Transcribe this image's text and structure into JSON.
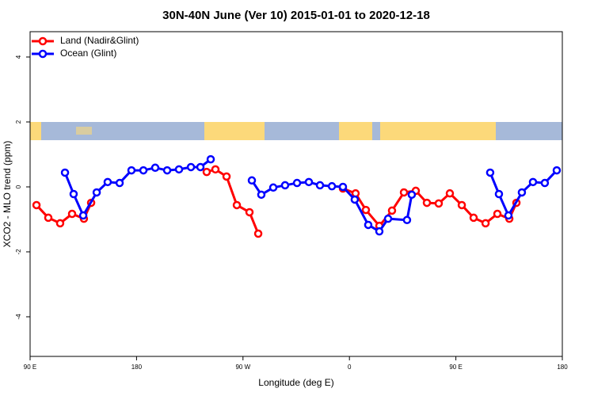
{
  "chart_data": {
    "type": "line",
    "title": "30N-40N June (Ver 10)   2015-01-01 to 2020-12-18",
    "x_label": "Longitude (deg E)",
    "y_label": "XCO2 - MLO trend (ppm)",
    "xlim": [
      90,
      540
    ],
    "ylim": [
      -5.22,
      4.78
    ],
    "xticks": [
      {
        "value": 90,
        "label": "90 E"
      },
      {
        "value": 180,
        "label": "180"
      },
      {
        "value": 270,
        "label": "90 W"
      },
      {
        "value": 360,
        "label": "0"
      },
      {
        "value": 450,
        "label": "90 E"
      },
      {
        "value": 540,
        "label": "180"
      }
    ],
    "yticks": [
      -4,
      -2,
      0,
      2,
      4
    ],
    "legend": "top-left",
    "series": [
      {
        "name": "Land (Nadir&Glint)",
        "color": "#ff0000",
        "x": [
          95.4,
          105.4,
          115.4,
          125.5,
          135.5,
          141.6,
          null,
          239.3,
          246.7,
          256.1,
          264.8,
          275.5,
          282.9,
          null,
          354.5,
          365.2,
          373.9,
          385.3,
          396.0,
          406.1,
          416.1,
          425.5,
          435.5,
          444.9,
          455.0,
          465.0,
          475.1,
          485.1,
          495.2,
          501.2
        ],
        "values": [
          -0.56,
          -0.95,
          -1.12,
          -0.83,
          -0.98,
          -0.49,
          null,
          0.46,
          0.54,
          0.32,
          -0.56,
          -0.78,
          -1.44,
          null,
          -0.05,
          -0.2,
          -0.71,
          -1.2,
          -0.73,
          -0.17,
          -0.12,
          -0.49,
          -0.51,
          -0.2,
          -0.56,
          -0.95,
          -1.12,
          -0.83,
          -0.98,
          -0.49
        ]
      },
      {
        "name": "Ocean (Glint)",
        "color": "#0000ff",
        "x": [
          119.5,
          126.8,
          134.9,
          146.3,
          155.6,
          165.7,
          175.7,
          185.8,
          195.8,
          205.9,
          215.9,
          226.0,
          234.0,
          242.7,
          null,
          277.5,
          285.5,
          295.6,
          305.6,
          315.7,
          325.7,
          335.1,
          345.2,
          354.5,
          364.5,
          375.9,
          385.3,
          392.7,
          408.7,
          412.7,
          null,
          479.0,
          486.4,
          494.4,
          505.8,
          515.2,
          525.2,
          535.3
        ],
        "values": [
          0.44,
          -0.22,
          -0.88,
          -0.17,
          0.15,
          0.12,
          0.51,
          0.51,
          0.59,
          0.51,
          0.54,
          0.61,
          0.61,
          0.85,
          null,
          0.2,
          -0.24,
          -0.02,
          0.05,
          0.12,
          0.15,
          0.05,
          0.02,
          0.0,
          -0.39,
          -1.17,
          -1.37,
          -0.98,
          -1.02,
          -0.24,
          null,
          0.44,
          -0.22,
          -0.88,
          -0.17,
          0.15,
          0.12,
          0.51
        ]
      }
    ]
  }
}
